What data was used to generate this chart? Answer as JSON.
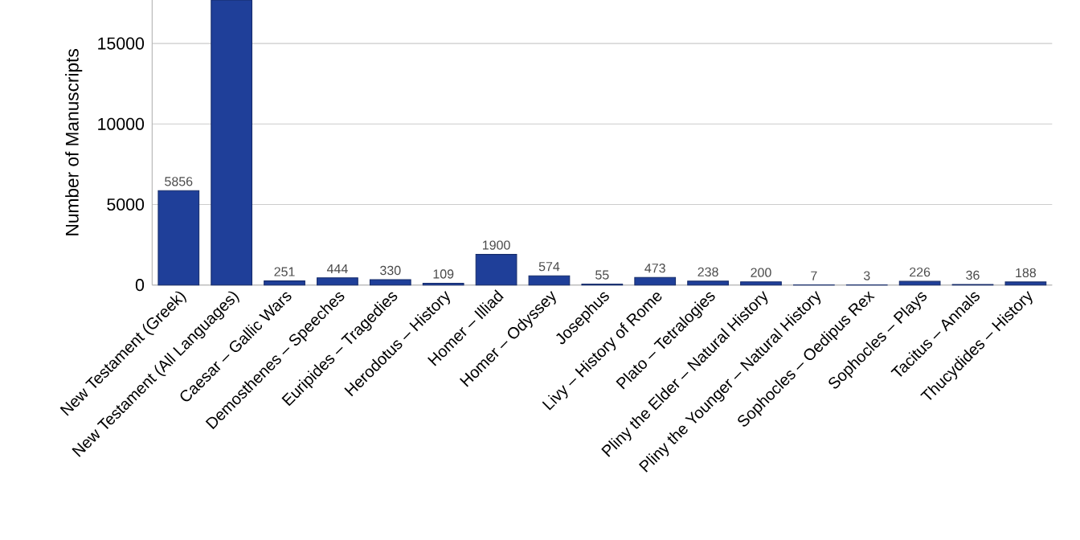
{
  "chart_data": {
    "type": "bar",
    "ylabel": "Number of Manuscripts",
    "categories": [
      "New Testament (Greek)",
      "New Testament (All Languages)",
      "Caesar – Gallic Wars",
      "Demosthenes – Speeches",
      "Euripides – Tragedies",
      "Herodotus – History",
      "Homer – Illiad",
      "Homer – Odyssey",
      "Josephus",
      "Livy – History of Rome",
      "Plato – Tetralogies",
      "Pliny the Elder – Natural History",
      "Pliny the Younger – Natural History",
      "Sophocles – Oedipus Rex",
      "Sophocles – Plays",
      "Tacitus – Annals",
      "Thucydides – History"
    ],
    "values": [
      5856,
      17700,
      251,
      444,
      330,
      109,
      1900,
      574,
      55,
      473,
      238,
      200,
      7,
      3,
      226,
      36,
      188
    ],
    "value_labels": [
      "5856",
      null,
      "251",
      "444",
      "330",
      "109",
      "1900",
      "574",
      "55",
      "473",
      "238",
      "200",
      "7",
      "3",
      "226",
      "36",
      "188"
    ],
    "color": "#1f3f99",
    "ylim": [
      0,
      17700
    ],
    "yticks": [
      0,
      5000,
      10000,
      15000
    ],
    "grid": "y"
  }
}
